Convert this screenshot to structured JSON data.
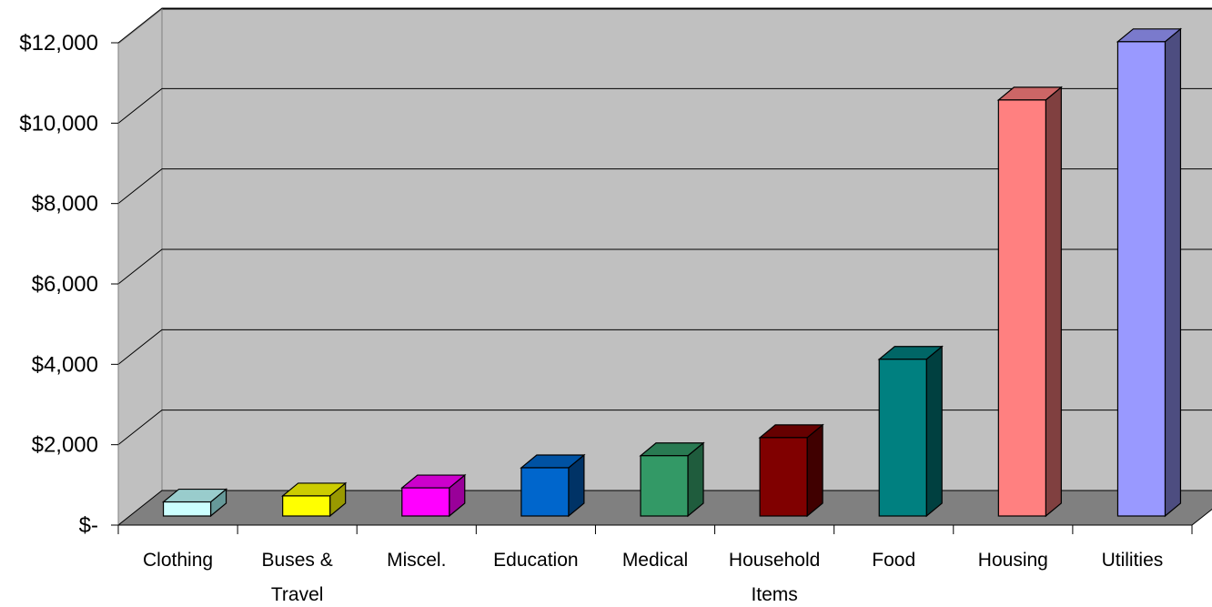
{
  "chart_data": {
    "type": "bar",
    "categories": [
      [
        "Clothing"
      ],
      [
        "Buses &",
        "Travel"
      ],
      [
        "Miscel."
      ],
      [
        "Education"
      ],
      [
        "Medical"
      ],
      [
        "Household",
        "Items"
      ],
      [
        "Food"
      ],
      [
        "Housing"
      ],
      [
        "Utilities"
      ]
    ],
    "values": [
      350,
      500,
      700,
      1200,
      1500,
      1950,
      3900,
      10350,
      11800
    ],
    "colors": [
      {
        "front": "#ccffff",
        "top": "#99cccc",
        "side": "#669999"
      },
      {
        "front": "#ffff00",
        "top": "#cccc00",
        "side": "#999900"
      },
      {
        "front": "#ff00ff",
        "top": "#cc00cc",
        "side": "#990099"
      },
      {
        "front": "#0066cc",
        "top": "#0052a3",
        "side": "#003366"
      },
      {
        "front": "#339966",
        "top": "#297a52",
        "side": "#1f5c3d"
      },
      {
        "front": "#800000",
        "top": "#660000",
        "side": "#400000"
      },
      {
        "front": "#008080",
        "top": "#006666",
        "side": "#004040"
      },
      {
        "front": "#ff8080",
        "top": "#cc6666",
        "side": "#804040"
      },
      {
        "front": "#9999ff",
        "top": "#7a7acc",
        "side": "#4d4d80"
      }
    ],
    "yticks": [
      "$-",
      "$2,000",
      "$4,000",
      "$6,000",
      "$8,000",
      "$10,000",
      "$12,000"
    ],
    "ylim": [
      0,
      12000
    ],
    "grid": true,
    "legend": "none",
    "wall_color": "#c0c0c0",
    "floor_color": "#808080"
  }
}
